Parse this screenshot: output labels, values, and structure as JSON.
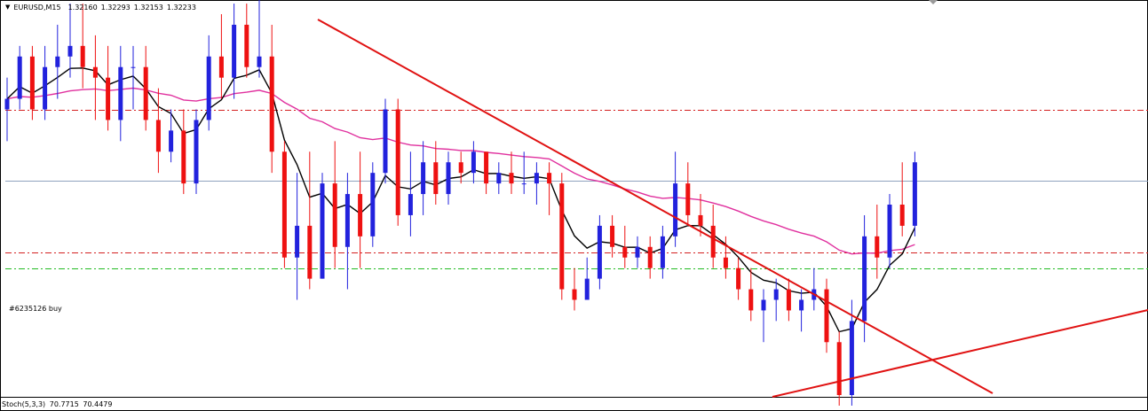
{
  "header": {
    "symbol": "EURUSD,M15",
    "open": "1.32160",
    "high": "1.32293",
    "low": "1.32153",
    "close": "1.32233",
    "arrow_icon": "triangle-down-icon"
  },
  "order_label": "#6235126 buy",
  "indicator": {
    "name": "Stoch(5,3,3)",
    "main": "70.7715",
    "signal": "70.4479"
  },
  "colors": {
    "background": "#ffffff",
    "bull_candle": "#2222dd",
    "bear_candle": "#ee1111",
    "ma_fast": "#000000",
    "ma_slow": "#e0309e",
    "trendline": "#e01111",
    "sl_tp_line": "#d42020",
    "order_line": "#22bb22",
    "bid_line": "#8fa3bf"
  },
  "chart_data": {
    "type": "candlestick",
    "ylim": [
      1.3203,
      1.3239
    ],
    "bid_price": 1.32233,
    "levels": [
      {
        "name": "take-profit",
        "price": 1.323
      },
      {
        "name": "stop-loss",
        "price": 1.32165
      },
      {
        "name": "order-open",
        "price": 1.3215
      }
    ],
    "candles": [
      [
        1.323,
        1.3233,
        1.3227,
        1.3231
      ],
      [
        1.3231,
        1.3236,
        1.323,
        1.3235
      ],
      [
        1.3235,
        1.3236,
        1.3229,
        1.323
      ],
      [
        1.323,
        1.3236,
        1.3229,
        1.3234
      ],
      [
        1.3234,
        1.3238,
        1.3231,
        1.3235
      ],
      [
        1.3235,
        1.324,
        1.3233,
        1.3236
      ],
      [
        1.3236,
        1.324,
        1.3232,
        1.3234
      ],
      [
        1.3234,
        1.3237,
        1.3229,
        1.3233
      ],
      [
        1.3233,
        1.3236,
        1.3228,
        1.3229
      ],
      [
        1.3229,
        1.3236,
        1.3227,
        1.3234
      ],
      [
        1.3234,
        1.3236,
        1.323,
        1.3234
      ],
      [
        1.3234,
        1.3236,
        1.3228,
        1.3229
      ],
      [
        1.3229,
        1.3232,
        1.3224,
        1.3226
      ],
      [
        1.3226,
        1.323,
        1.3225,
        1.3228
      ],
      [
        1.3228,
        1.323,
        1.3222,
        1.3223
      ],
      [
        1.3223,
        1.323,
        1.3222,
        1.3229
      ],
      [
        1.3229,
        1.3237,
        1.3228,
        1.3235
      ],
      [
        1.3235,
        1.3239,
        1.3231,
        1.3233
      ],
      [
        1.3233,
        1.324,
        1.3231,
        1.3238
      ],
      [
        1.3238,
        1.324,
        1.3233,
        1.3234
      ],
      [
        1.3234,
        1.3244,
        1.3233,
        1.3235
      ],
      [
        1.3235,
        1.3238,
        1.3224,
        1.3226
      ],
      [
        1.3226,
        1.3227,
        1.3215,
        1.3216
      ],
      [
        1.3216,
        1.3224,
        1.3212,
        1.3219
      ],
      [
        1.3219,
        1.3226,
        1.3213,
        1.3214
      ],
      [
        1.3214,
        1.3224,
        1.3214,
        1.3223
      ],
      [
        1.3223,
        1.3227,
        1.3215,
        1.3217
      ],
      [
        1.3217,
        1.3224,
        1.3213,
        1.3222
      ],
      [
        1.3222,
        1.3226,
        1.3215,
        1.3218
      ],
      [
        1.3218,
        1.3225,
        1.3217,
        1.3224
      ],
      [
        1.3224,
        1.3231,
        1.3223,
        1.323
      ],
      [
        1.323,
        1.3231,
        1.3219,
        1.322
      ],
      [
        1.322,
        1.3226,
        1.3218,
        1.3222
      ],
      [
        1.3222,
        1.3227,
        1.322,
        1.3225
      ],
      [
        1.3225,
        1.3227,
        1.3221,
        1.3222
      ],
      [
        1.3222,
        1.3226,
        1.3221,
        1.3225
      ],
      [
        1.3225,
        1.3226,
        1.3223,
        1.3224
      ],
      [
        1.3224,
        1.3227,
        1.3223,
        1.3226
      ],
      [
        1.3226,
        1.3226,
        1.3222,
        1.3223
      ],
      [
        1.3223,
        1.3225,
        1.3222,
        1.3224
      ],
      [
        1.3224,
        1.3226,
        1.3222,
        1.3223
      ],
      [
        1.3223,
        1.3226,
        1.3222,
        1.3223
      ],
      [
        1.3223,
        1.3225,
        1.3221,
        1.3224
      ],
      [
        1.3224,
        1.3225,
        1.322,
        1.3223
      ],
      [
        1.3223,
        1.3224,
        1.3212,
        1.3213
      ],
      [
        1.3213,
        1.3215,
        1.3211,
        1.3212
      ],
      [
        1.3212,
        1.3216,
        1.3212,
        1.3214
      ],
      [
        1.3214,
        1.322,
        1.3213,
        1.3219
      ],
      [
        1.3219,
        1.322,
        1.3216,
        1.3217
      ],
      [
        1.3217,
        1.3219,
        1.3215,
        1.3216
      ],
      [
        1.3216,
        1.3218,
        1.3215,
        1.3217
      ],
      [
        1.3217,
        1.3218,
        1.3214,
        1.3215
      ],
      [
        1.3215,
        1.3219,
        1.3214,
        1.3218
      ],
      [
        1.3218,
        1.3226,
        1.3217,
        1.3223
      ],
      [
        1.3223,
        1.3225,
        1.3219,
        1.322
      ],
      [
        1.322,
        1.3222,
        1.3218,
        1.3219
      ],
      [
        1.3219,
        1.3221,
        1.3215,
        1.3216
      ],
      [
        1.3216,
        1.3218,
        1.3214,
        1.3215
      ],
      [
        1.3215,
        1.3216,
        1.3212,
        1.3213
      ],
      [
        1.3213,
        1.3215,
        1.321,
        1.3211
      ],
      [
        1.3211,
        1.3213,
        1.3208,
        1.3212
      ],
      [
        1.3212,
        1.3214,
        1.321,
        1.3213
      ],
      [
        1.3213,
        1.3214,
        1.321,
        1.3211
      ],
      [
        1.3211,
        1.3213,
        1.3209,
        1.3212
      ],
      [
        1.3212,
        1.3215,
        1.3211,
        1.3213
      ],
      [
        1.3213,
        1.3214,
        1.3207,
        1.3208
      ],
      [
        1.3208,
        1.3209,
        1.3202,
        1.3203
      ],
      [
        1.3203,
        1.3212,
        1.3202,
        1.321
      ],
      [
        1.321,
        1.322,
        1.3208,
        1.3218
      ],
      [
        1.3218,
        1.3221,
        1.3214,
        1.3216
      ],
      [
        1.3216,
        1.3222,
        1.3215,
        1.3221
      ],
      [
        1.3221,
        1.3225,
        1.3218,
        1.3219
      ],
      [
        1.3219,
        1.3226,
        1.3218,
        1.3225
      ]
    ]
  }
}
